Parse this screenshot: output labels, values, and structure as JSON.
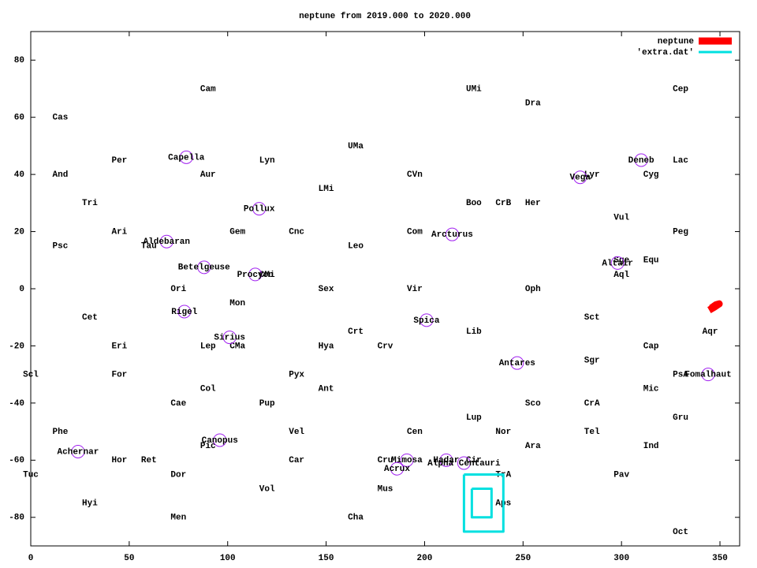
{
  "chart_data": {
    "type": "scatter",
    "title": "neptune from 2019.000 to 2020.000",
    "xlim": [
      0,
      360
    ],
    "ylim": [
      -90,
      90
    ],
    "xticks": [
      0,
      50,
      100,
      150,
      200,
      250,
      300,
      350
    ],
    "yticks": [
      -80,
      -60,
      -40,
      -20,
      0,
      20,
      40,
      60,
      80
    ],
    "legend": "upper right",
    "labels": [
      {
        "text": "Cam",
        "x": 90,
        "y": 70
      },
      {
        "text": "Cas",
        "x": 15,
        "y": 60
      },
      {
        "text": "UMi",
        "x": 225,
        "y": 70
      },
      {
        "text": "Dra",
        "x": 255,
        "y": 65
      },
      {
        "text": "Cep",
        "x": 330,
        "y": 70
      },
      {
        "text": "UMa",
        "x": 165,
        "y": 50
      },
      {
        "text": "Per",
        "x": 45,
        "y": 45
      },
      {
        "text": "Lyn",
        "x": 120,
        "y": 45
      },
      {
        "text": "Lac",
        "x": 330,
        "y": 45
      },
      {
        "text": "And",
        "x": 15,
        "y": 40
      },
      {
        "text": "Aur",
        "x": 90,
        "y": 40
      },
      {
        "text": "CVn",
        "x": 195,
        "y": 40
      },
      {
        "text": "Lyr",
        "x": 285,
        "y": 40
      },
      {
        "text": "Cyg",
        "x": 315,
        "y": 40
      },
      {
        "text": "LMi",
        "x": 150,
        "y": 35
      },
      {
        "text": "Tri",
        "x": 30,
        "y": 30
      },
      {
        "text": "Boo",
        "x": 225,
        "y": 30
      },
      {
        "text": "CrB",
        "x": 240,
        "y": 30
      },
      {
        "text": "Her",
        "x": 255,
        "y": 30
      },
      {
        "text": "Vul",
        "x": 300,
        "y": 25
      },
      {
        "text": "Ari",
        "x": 45,
        "y": 20
      },
      {
        "text": "Gem",
        "x": 105,
        "y": 20
      },
      {
        "text": "Cnc",
        "x": 135,
        "y": 20
      },
      {
        "text": "Com",
        "x": 195,
        "y": 20
      },
      {
        "text": "Peg",
        "x": 330,
        "y": 20
      },
      {
        "text": "Psc",
        "x": 15,
        "y": 15
      },
      {
        "text": "Tau",
        "x": 60,
        "y": 15
      },
      {
        "text": "Leo",
        "x": 165,
        "y": 15
      },
      {
        "text": "Sge",
        "x": 300,
        "y": 10
      },
      {
        "text": "Equ",
        "x": 315,
        "y": 10
      },
      {
        "text": "Aql",
        "x": 300,
        "y": 5
      },
      {
        "text": "CMi",
        "x": 120,
        "y": 5
      },
      {
        "text": "Ori",
        "x": 75,
        "y": 0
      },
      {
        "text": "Sex",
        "x": 150,
        "y": 0
      },
      {
        "text": "Vir",
        "x": 195,
        "y": 0
      },
      {
        "text": "Oph",
        "x": 255,
        "y": 0
      },
      {
        "text": "Mon",
        "x": 105,
        "y": -5
      },
      {
        "text": "Cet",
        "x": 30,
        "y": -10
      },
      {
        "text": "Sct",
        "x": 285,
        "y": -10
      },
      {
        "text": "Crt",
        "x": 165,
        "y": -15
      },
      {
        "text": "Lib",
        "x": 225,
        "y": -15
      },
      {
        "text": "Aqr",
        "x": 345,
        "y": -15
      },
      {
        "text": "Eri",
        "x": 45,
        "y": -20
      },
      {
        "text": "Lep",
        "x": 90,
        "y": -20
      },
      {
        "text": "CMa",
        "x": 105,
        "y": -20
      },
      {
        "text": "Hya",
        "x": 150,
        "y": -20
      },
      {
        "text": "Crv",
        "x": 180,
        "y": -20
      },
      {
        "text": "Cap",
        "x": 315,
        "y": -20
      },
      {
        "text": "Sgr",
        "x": 285,
        "y": -25
      },
      {
        "text": "Scl",
        "x": 0,
        "y": -30
      },
      {
        "text": "For",
        "x": 45,
        "y": -30
      },
      {
        "text": "Pyx",
        "x": 135,
        "y": -30
      },
      {
        "text": "PsA",
        "x": 330,
        "y": -30
      },
      {
        "text": "Col",
        "x": 90,
        "y": -35
      },
      {
        "text": "Ant",
        "x": 150,
        "y": -35
      },
      {
        "text": "Mic",
        "x": 315,
        "y": -35
      },
      {
        "text": "Cae",
        "x": 75,
        "y": -40
      },
      {
        "text": "Pup",
        "x": 120,
        "y": -40
      },
      {
        "text": "Sco",
        "x": 255,
        "y": -40
      },
      {
        "text": "CrA",
        "x": 285,
        "y": -40
      },
      {
        "text": "Gru",
        "x": 330,
        "y": -45
      },
      {
        "text": "Lup",
        "x": 225,
        "y": -45
      },
      {
        "text": "Phe",
        "x": 15,
        "y": -50
      },
      {
        "text": "Vel",
        "x": 135,
        "y": -50
      },
      {
        "text": "Cen",
        "x": 195,
        "y": -50
      },
      {
        "text": "Nor",
        "x": 240,
        "y": -50
      },
      {
        "text": "Tel",
        "x": 285,
        "y": -50
      },
      {
        "text": "Pic",
        "x": 90,
        "y": -55
      },
      {
        "text": "Ara",
        "x": 255,
        "y": -55
      },
      {
        "text": "Ind",
        "x": 315,
        "y": -55
      },
      {
        "text": "Hor",
        "x": 45,
        "y": -60
      },
      {
        "text": "Ret",
        "x": 60,
        "y": -60
      },
      {
        "text": "Car",
        "x": 135,
        "y": -60
      },
      {
        "text": "Cru",
        "x": 180,
        "y": -60
      },
      {
        "text": "Cir",
        "x": 225,
        "y": -60
      },
      {
        "text": "Tuc",
        "x": 0,
        "y": -65
      },
      {
        "text": "Dor",
        "x": 75,
        "y": -65
      },
      {
        "text": "TrA",
        "x": 240,
        "y": -65
      },
      {
        "text": "Pav",
        "x": 300,
        "y": -65
      },
      {
        "text": "Vol",
        "x": 120,
        "y": -70
      },
      {
        "text": "Mus",
        "x": 180,
        "y": -70
      },
      {
        "text": "Aps",
        "x": 240,
        "y": -75
      },
      {
        "text": "Hyi",
        "x": 30,
        "y": -75
      },
      {
        "text": "Men",
        "x": 75,
        "y": -80
      },
      {
        "text": "Cha",
        "x": 165,
        "y": -80
      },
      {
        "text": "Oct",
        "x": 330,
        "y": -85
      }
    ],
    "stars": {
      "color": "#a020f0",
      "names": [
        "Capella",
        "Deneb",
        "Vega",
        "Pollux",
        "Arcturus",
        "Aldebaran",
        "Altair",
        "Betelgeuse",
        "Procyon",
        "Rigel",
        "Spica",
        "Sirius",
        "Antares",
        "Fomalhaut",
        "Canopus",
        "Achernar",
        "Mimosa",
        "Hadar",
        "Alpha Centauri",
        "Acrux"
      ],
      "x": [
        79,
        310,
        279,
        116,
        214,
        69,
        298,
        88,
        114,
        78,
        201,
        101,
        247,
        344,
        96,
        24,
        191,
        211,
        220,
        186
      ],
      "y": [
        46,
        45,
        39,
        28,
        19,
        16.5,
        9,
        7.5,
        5,
        -8,
        -11,
        -17,
        -26,
        -30,
        -53,
        -57,
        -60,
        -60,
        -61,
        -63
      ]
    },
    "series": [
      {
        "name": "neptune",
        "color": "#ff0000",
        "x": [
          344.5,
          347,
          349.6,
          348,
          345.5
        ],
        "y": [
          -7.5,
          -6.5,
          -5.3,
          -5.6,
          -6.8
        ]
      },
      {
        "name": "'extra.dat'",
        "color": "#00e0e0",
        "x": [
          220,
          240,
          240,
          220,
          220,
          null,
          224,
          234,
          234,
          224,
          224
        ],
        "y": [
          -65,
          -65,
          -85,
          -85,
          -65,
          null,
          -70,
          -70,
          -80,
          -80,
          -70
        ]
      }
    ]
  }
}
